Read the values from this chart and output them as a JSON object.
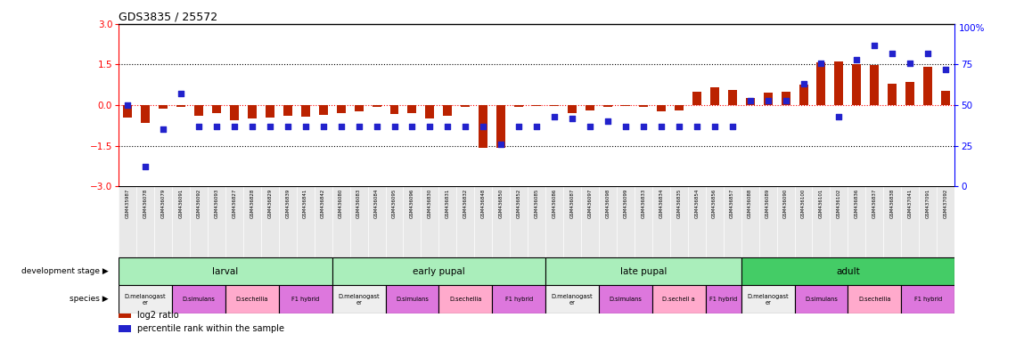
{
  "title": "GDS3835 / 25572",
  "samples": [
    "GSM435987",
    "GSM436078",
    "GSM436079",
    "GSM436091",
    "GSM436092",
    "GSM436093",
    "GSM436827",
    "GSM436828",
    "GSM436829",
    "GSM436839",
    "GSM436841",
    "GSM436842",
    "GSM436080",
    "GSM436083",
    "GSM436084",
    "GSM436095",
    "GSM436096",
    "GSM436830",
    "GSM436831",
    "GSM436832",
    "GSM436848",
    "GSM436850",
    "GSM436852",
    "GSM436085",
    "GSM436086",
    "GSM436087",
    "GSM436097",
    "GSM436098",
    "GSM436099",
    "GSM436833",
    "GSM436834",
    "GSM436835",
    "GSM436854",
    "GSM436856",
    "GSM436857",
    "GSM436088",
    "GSM436089",
    "GSM436090",
    "GSM436100",
    "GSM436101",
    "GSM436102",
    "GSM436836",
    "GSM436837",
    "GSM436838",
    "GSM437041",
    "GSM437091",
    "GSM437092"
  ],
  "log2_ratio": [
    -0.45,
    -0.65,
    -0.12,
    -0.05,
    -0.4,
    -0.3,
    -0.55,
    -0.48,
    -0.45,
    -0.38,
    -0.42,
    -0.35,
    -0.28,
    -0.22,
    -0.08,
    -0.32,
    -0.28,
    -0.5,
    -0.38,
    -0.08,
    -1.58,
    -1.58,
    -0.08,
    -0.04,
    -0.04,
    -0.28,
    -0.18,
    -0.08,
    -0.04,
    -0.08,
    -0.22,
    -0.18,
    0.5,
    0.65,
    0.55,
    0.28,
    0.45,
    0.5,
    0.75,
    1.58,
    1.62,
    1.52,
    1.48,
    0.8,
    0.85,
    1.42,
    0.52
  ],
  "percentile": [
    50,
    12,
    35,
    57,
    37,
    37,
    37,
    37,
    37,
    37,
    37,
    37,
    37,
    37,
    37,
    37,
    37,
    37,
    37,
    37,
    37,
    26,
    37,
    37,
    43,
    42,
    37,
    40,
    37,
    37,
    37,
    37,
    37,
    37,
    37,
    53,
    53,
    53,
    63,
    76,
    43,
    78,
    87,
    82,
    76,
    82,
    72
  ],
  "dev_stages": [
    {
      "label": "larval",
      "start": 0,
      "end": 11,
      "color": "#aaeebb"
    },
    {
      "label": "early pupal",
      "start": 12,
      "end": 23,
      "color": "#aaeebb"
    },
    {
      "label": "late pupal",
      "start": 24,
      "end": 34,
      "color": "#aaeebb"
    },
    {
      "label": "adult",
      "start": 35,
      "end": 46,
      "color": "#44cc66"
    }
  ],
  "species_blocks": [
    {
      "label": "D.melanogast\ner",
      "start": 0,
      "end": 2,
      "color": "#eeeeee"
    },
    {
      "label": "D.simulans",
      "start": 3,
      "end": 5,
      "color": "#dd77dd"
    },
    {
      "label": "D.sechellia",
      "start": 6,
      "end": 8,
      "color": "#ffaacc"
    },
    {
      "label": "F1 hybrid",
      "start": 9,
      "end": 11,
      "color": "#dd77dd"
    },
    {
      "label": "D.melanogast\ner",
      "start": 12,
      "end": 14,
      "color": "#eeeeee"
    },
    {
      "label": "D.simulans",
      "start": 15,
      "end": 17,
      "color": "#dd77dd"
    },
    {
      "label": "D.sechellia",
      "start": 18,
      "end": 20,
      "color": "#ffaacc"
    },
    {
      "label": "F1 hybrid",
      "start": 21,
      "end": 23,
      "color": "#dd77dd"
    },
    {
      "label": "D.melanogast\ner",
      "start": 24,
      "end": 26,
      "color": "#eeeeee"
    },
    {
      "label": "D.simulans",
      "start": 27,
      "end": 29,
      "color": "#dd77dd"
    },
    {
      "label": "D.sechell a",
      "start": 30,
      "end": 32,
      "color": "#ffaacc"
    },
    {
      "label": "F1 hybrid",
      "start": 33,
      "end": 34,
      "color": "#dd77dd"
    },
    {
      "label": "D.melanogast\ner",
      "start": 35,
      "end": 37,
      "color": "#eeeeee"
    },
    {
      "label": "D.simulans",
      "start": 38,
      "end": 40,
      "color": "#dd77dd"
    },
    {
      "label": "D.sechellia",
      "start": 41,
      "end": 43,
      "color": "#ffaacc"
    },
    {
      "label": "F1 hybrid",
      "start": 44,
      "end": 46,
      "color": "#dd77dd"
    }
  ],
  "bar_color": "#bb2200",
  "scatter_color": "#2222cc",
  "ylim_left": [
    -3,
    3
  ],
  "ylim_right": [
    0,
    100
  ],
  "yticks_left": [
    -3,
    -1.5,
    0,
    1.5,
    3
  ],
  "yticks_right": [
    0,
    25,
    50,
    75,
    100
  ],
  "hlines": [
    -1.5,
    0,
    1.5
  ],
  "background": "#ffffff",
  "legend_items": [
    {
      "color": "#bb2200",
      "label": "log2 ratio"
    },
    {
      "color": "#2222cc",
      "label": "percentile rank within the sample"
    }
  ]
}
